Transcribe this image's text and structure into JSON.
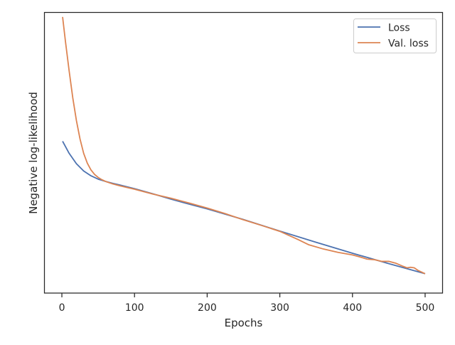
{
  "chart_data": {
    "type": "line",
    "title": "",
    "xlabel": "Epochs",
    "ylabel": "Negative log-likelihood",
    "xlim": [
      -24,
      524
    ],
    "ylim": [
      0,
      100
    ],
    "xticks": [
      0,
      100,
      200,
      300,
      400,
      500
    ],
    "y_tick_labels_shown": false,
    "grid": false,
    "legend_position": "top-right",
    "series": [
      {
        "name": "Loss",
        "color": "#4c72b0",
        "x": [
          1,
          10,
          20,
          30,
          40,
          50,
          60,
          70,
          80,
          100,
          125,
          150,
          175,
          200,
          250,
          300,
          350,
          400,
          450,
          500
        ],
        "y": [
          54.1,
          49.8,
          46.1,
          43.5,
          41.8,
          40.6,
          39.8,
          39.1,
          38.5,
          37.2,
          35.4,
          33.5,
          31.7,
          30.0,
          26.2,
          22.1,
          18.1,
          14.2,
          10.5,
          6.9
        ]
      },
      {
        "name": "Val. loss",
        "color": "#dd8452",
        "x": [
          1,
          5,
          10,
          15,
          20,
          25,
          30,
          35,
          40,
          45,
          50,
          55,
          60,
          70,
          80,
          90,
          100,
          125,
          150,
          175,
          200,
          225,
          250,
          275,
          300,
          325,
          340,
          360,
          380,
          400,
          410,
          420,
          430,
          440,
          450,
          460,
          470,
          475,
          480,
          485,
          490,
          500
        ],
        "y": [
          98.4,
          89.5,
          79.2,
          69.6,
          61.5,
          54.9,
          49.8,
          46.3,
          43.9,
          42.3,
          41.2,
          40.4,
          39.8,
          38.9,
          38.2,
          37.6,
          37.0,
          35.3,
          33.8,
          32.1,
          30.3,
          28.3,
          26.1,
          24.1,
          22.0,
          19.1,
          17.2,
          15.7,
          14.5,
          13.6,
          12.9,
          12.1,
          11.9,
          11.3,
          11.3,
          10.6,
          9.5,
          9.0,
          9.2,
          9.0,
          8.1,
          6.9
        ]
      }
    ]
  }
}
